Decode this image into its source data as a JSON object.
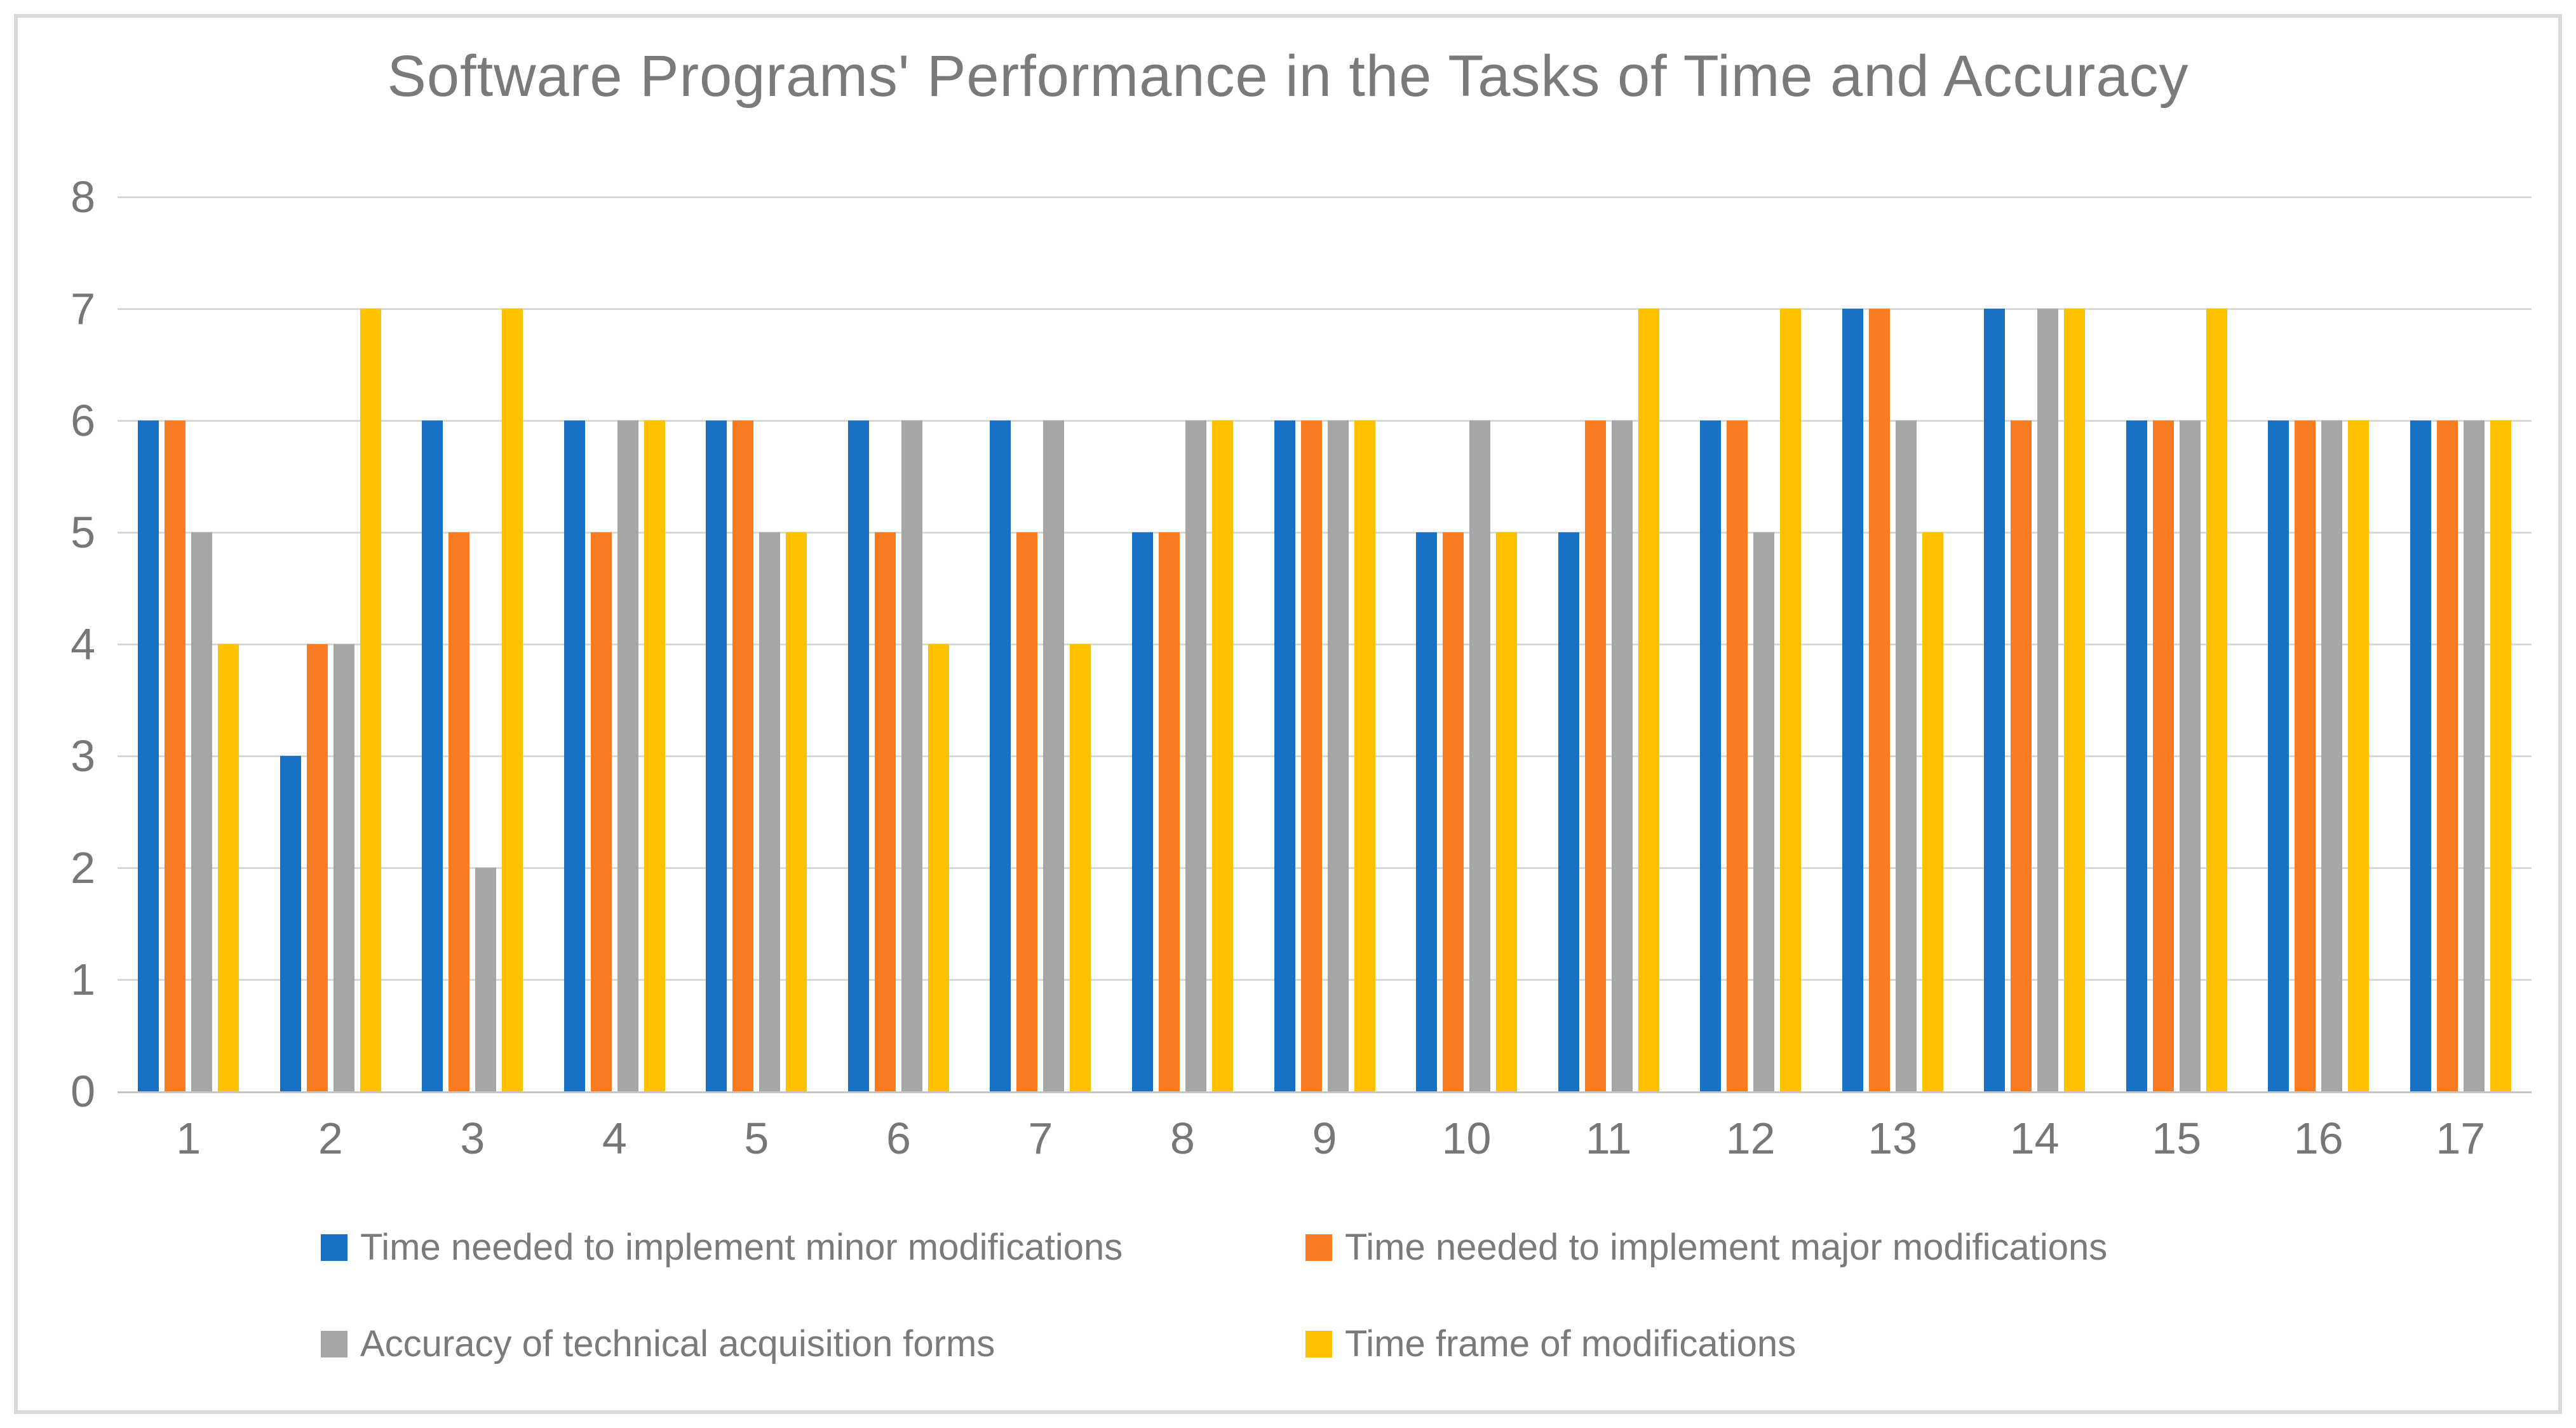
{
  "chart_data": {
    "type": "bar",
    "title": "Software Programs' Performance in the Tasks of Time and Accuracy",
    "categories": [
      "1",
      "2",
      "3",
      "4",
      "5",
      "6",
      "7",
      "8",
      "9",
      "10",
      "11",
      "12",
      "13",
      "14",
      "15",
      "16",
      "17"
    ],
    "series": [
      {
        "name": "Time needed to implement minor modifications",
        "color": "#1772C6",
        "values": [
          6,
          3,
          6,
          6,
          6,
          6,
          6,
          5,
          6,
          5,
          5,
          6,
          7,
          7,
          6,
          6,
          6
        ]
      },
      {
        "name": "Time needed to implement major modifications",
        "color": "#FB7B25",
        "values": [
          6,
          4,
          5,
          5,
          6,
          5,
          5,
          5,
          6,
          5,
          6,
          6,
          7,
          6,
          6,
          6,
          6
        ]
      },
      {
        "name": "Accuracy of technical acquisition forms",
        "color": "#A6A6A6",
        "values": [
          5,
          4,
          2,
          6,
          5,
          6,
          6,
          6,
          6,
          6,
          6,
          5,
          6,
          7,
          6,
          6,
          6
        ]
      },
      {
        "name": "Time frame of modifications",
        "color": "#FFC000",
        "values": [
          4,
          7,
          7,
          6,
          5,
          4,
          4,
          6,
          6,
          5,
          7,
          7,
          5,
          7,
          7,
          6,
          6
        ]
      }
    ],
    "ylim": [
      0,
      8
    ],
    "yticks": [
      0,
      1,
      2,
      3,
      4,
      5,
      6,
      7,
      8
    ],
    "grid": true,
    "legend_position": "bottom",
    "xlabel": "",
    "ylabel": "",
    "text_color": "#7A7A7A",
    "gridline_color": "#D9D9D9",
    "axisline_color": "#C6C6C6"
  }
}
